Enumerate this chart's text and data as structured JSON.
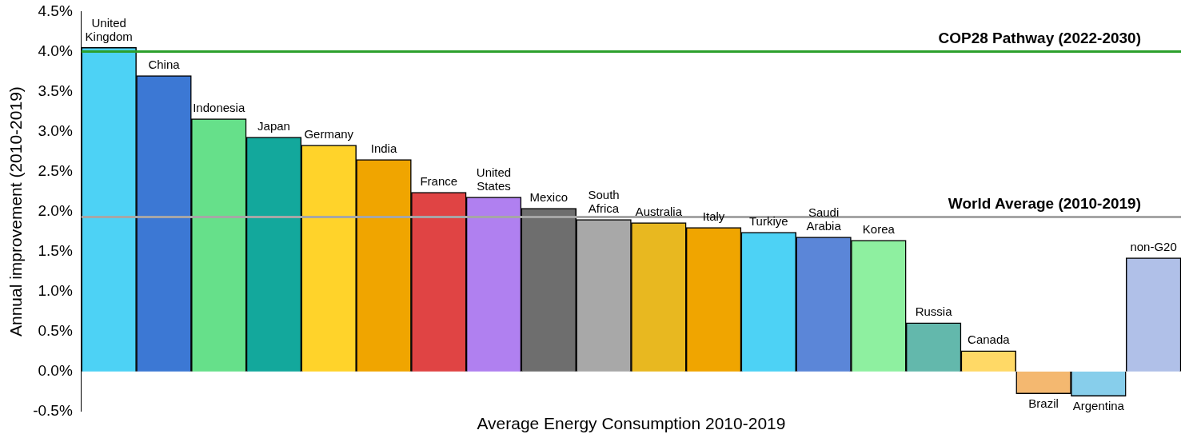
{
  "chart_data": {
    "type": "bar",
    "xlabel": "Average Energy Consumption 2010-2019",
    "ylabel": "Annual improvement (2010-2019)",
    "categories": [
      "United Kingdom",
      "China",
      "Indonesia",
      "Japan",
      "Germany",
      "India",
      "France",
      "United States",
      "Mexico",
      "South Africa",
      "Australia",
      "Italy",
      "Turkiye",
      "Saudi Arabia",
      "Korea",
      "Russia",
      "Canada",
      "Brazil",
      "Argentina",
      "non-G20"
    ],
    "values": [
      4.05,
      3.7,
      3.16,
      2.93,
      2.83,
      2.65,
      2.24,
      2.18,
      2.04,
      1.9,
      1.86,
      1.8,
      1.74,
      1.68,
      1.64,
      0.61,
      0.26,
      -0.28,
      -0.31,
      1.42
    ],
    "colors": [
      "#4dd2f5",
      "#3c78d4",
      "#66e08a",
      "#13a89c",
      "#ffd32a",
      "#f0a500",
      "#e04444",
      "#b080f0",
      "#6e6e6e",
      "#a8a8a8",
      "#e8b820",
      "#f0a500",
      "#4dd2f5",
      "#5b86d8",
      "#8ef0a0",
      "#63b8ac",
      "#ffd966",
      "#f4b870",
      "#87ceeb",
      "#b0c0e8"
    ],
    "ylim": [
      -0.5,
      4.5
    ],
    "yticks": [
      {
        "value": -0.5,
        "label": "-0.5%"
      },
      {
        "value": 0,
        "label": "0.0%"
      },
      {
        "value": 0.5,
        "label": "0.5%"
      },
      {
        "value": 1,
        "label": "1.0%"
      },
      {
        "value": 1.5,
        "label": "1.5%"
      },
      {
        "value": 2,
        "label": "2.0%"
      },
      {
        "value": 2.5,
        "label": "2.5%"
      },
      {
        "value": 3,
        "label": "3.0%"
      },
      {
        "value": 3.5,
        "label": "3.5%"
      },
      {
        "value": 4,
        "label": "4.0%"
      },
      {
        "value": 4.5,
        "label": "4.5%"
      }
    ],
    "ref_lines": [
      {
        "axis": "y",
        "value": 4.0,
        "label": "COP28 Pathway (2022-2030)",
        "color": "#2ca02c"
      },
      {
        "axis": "y",
        "value": 1.93,
        "label": "World Average (2010-2019)",
        "color": "#a6a6a6"
      }
    ],
    "grid": false,
    "tick_labels": "y"
  }
}
